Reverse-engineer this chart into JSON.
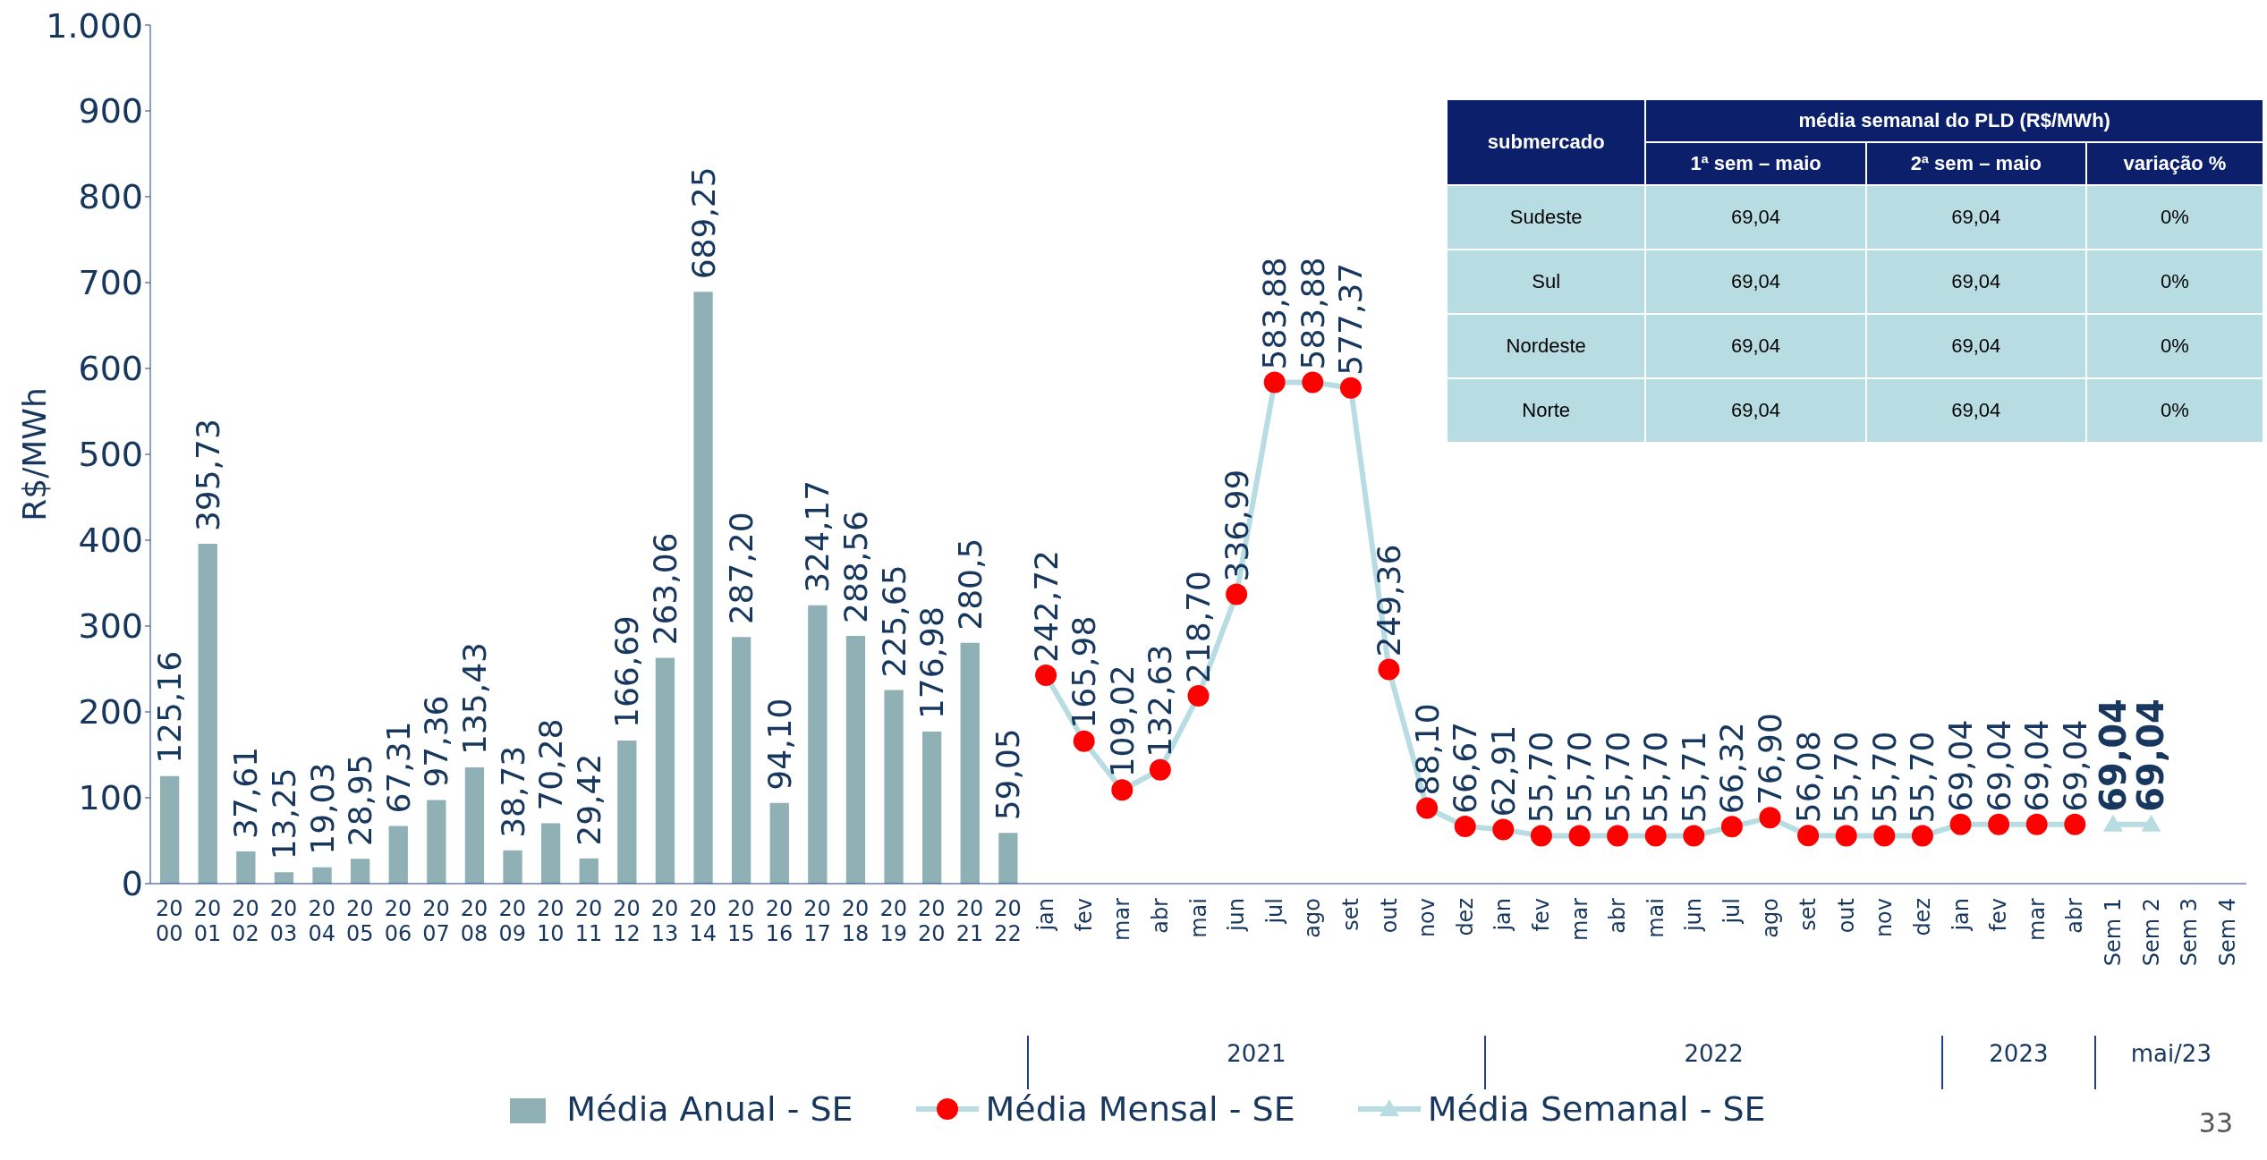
{
  "chart_data": [
    {
      "type": "bar",
      "ylabel": "R$/MWh",
      "categories": [
        "2000",
        "2001",
        "2002",
        "2003",
        "2004",
        "2005",
        "2006",
        "2007",
        "2008",
        "2009",
        "2010",
        "2011",
        "2012",
        "2013",
        "2014",
        "2015",
        "2016",
        "2017",
        "2018",
        "2019",
        "2020",
        "2021",
        "2022",
        "jan",
        "fev",
        "mar",
        "abr",
        "mai",
        "jun",
        "jul",
        "ago",
        "set",
        "out",
        "nov",
        "dez",
        "jan",
        "fev",
        "mar",
        "abr",
        "mai",
        "jun",
        "jul",
        "ago",
        "set",
        "out",
        "nov",
        "dez",
        "jan",
        "fev",
        "mar",
        "abr",
        "Sem 1",
        "Sem 2",
        "Sem 3",
        "Sem 4"
      ],
      "series": [
        {
          "name": "Média Anual - SE",
          "type": "bar",
          "color": "#8fb0b5",
          "values": [
            125.16,
            395.73,
            37.61,
            13.25,
            19.03,
            28.95,
            67.31,
            97.36,
            135.43,
            38.73,
            70.28,
            29.42,
            166.69,
            263.06,
            689.25,
            287.2,
            94.1,
            324.17,
            288.56,
            225.65,
            176.98,
            280.5,
            59.05,
            null,
            null,
            null,
            null,
            null,
            null,
            null,
            null,
            null,
            null,
            null,
            null,
            null,
            null,
            null,
            null,
            null,
            null,
            null,
            null,
            null,
            null,
            null,
            null,
            null,
            null,
            null,
            null,
            null,
            null,
            null,
            null
          ],
          "value_labels": [
            "125,16",
            "395,73",
            "37,61",
            "13,25",
            "19,03",
            "28,95",
            "67,31",
            "97,36",
            "135,43",
            "38,73",
            "70,28",
            "29,42",
            "166,69",
            "263,06",
            "689,25",
            "287,20",
            "94,10",
            "324,17",
            "288,56",
            "225,65",
            "176,98",
            "280,5",
            "59,05",
            null,
            null,
            null,
            null,
            null,
            null,
            null,
            null,
            null,
            null,
            null,
            null,
            null,
            null,
            null,
            null,
            null,
            null,
            null,
            null,
            null,
            null,
            null,
            null,
            null,
            null,
            null,
            null,
            null,
            null,
            null,
            null
          ]
        },
        {
          "name": "Média Mensal - SE",
          "type": "line",
          "color": "#b7dde3",
          "marker": "circle",
          "colors": [
            null,
            null,
            null,
            null,
            null,
            null,
            null,
            null,
            null,
            null,
            null,
            null,
            null,
            null,
            null,
            null,
            null,
            null,
            null,
            null,
            null,
            null,
            null,
            "#ff0000",
            "#ff0000",
            "#ff0000",
            "#ff0000",
            "#ff0000",
            "#ff0000",
            "#ff0000",
            "#ff0000",
            "#ff0000",
            "#ff0000",
            "#ff0000",
            "#ff0000",
            "#ff0000",
            "#ff0000",
            "#ff0000",
            "#ff0000",
            "#ff0000",
            "#ff0000",
            "#ff0000",
            "#ff0000",
            "#ff0000",
            "#ff0000",
            "#ff0000",
            "#ff0000",
            "#ff0000",
            "#ff0000",
            "#ff0000",
            "#ff0000",
            null,
            null,
            null,
            null
          ],
          "values": [
            null,
            null,
            null,
            null,
            null,
            null,
            null,
            null,
            null,
            null,
            null,
            null,
            null,
            null,
            null,
            null,
            null,
            null,
            null,
            null,
            null,
            null,
            null,
            242.72,
            165.98,
            109.02,
            132.63,
            218.7,
            336.99,
            583.88,
            583.88,
            577.37,
            249.36,
            88.1,
            66.67,
            62.91,
            55.7,
            55.7,
            55.7,
            55.7,
            55.71,
            66.32,
            76.9,
            56.08,
            55.7,
            55.7,
            55.7,
            69.04,
            69.04,
            69.04,
            69.04,
            null,
            null,
            null,
            null
          ],
          "value_labels": [
            null,
            null,
            null,
            null,
            null,
            null,
            null,
            null,
            null,
            null,
            null,
            null,
            null,
            null,
            null,
            null,
            null,
            null,
            null,
            null,
            null,
            null,
            null,
            "242,72",
            "165,98",
            "109,02",
            "132,63",
            "218,70",
            "336,99",
            "583,88",
            "583,88",
            "577,37",
            "249,36",
            "88,10",
            "66,67",
            "62,91",
            "55,70",
            "55,70",
            "55,70",
            "55,70",
            "55,71",
            "66,32",
            "76,90",
            "56,08",
            "55,70",
            "55,70",
            "55,70",
            "69,04",
            "69,04",
            "69,04",
            "69,04",
            null,
            null,
            null,
            null
          ]
        },
        {
          "name": "Média Semanal - SE",
          "type": "line",
          "color": "#b7dde3",
          "marker": "triangle",
          "values": [
            null,
            null,
            null,
            null,
            null,
            null,
            null,
            null,
            null,
            null,
            null,
            null,
            null,
            null,
            null,
            null,
            null,
            null,
            null,
            null,
            null,
            null,
            null,
            null,
            null,
            null,
            null,
            null,
            null,
            null,
            null,
            null,
            null,
            null,
            null,
            null,
            null,
            null,
            null,
            null,
            null,
            null,
            null,
            null,
            null,
            null,
            null,
            null,
            null,
            null,
            null,
            69.04,
            69.04,
            null,
            null
          ],
          "value_labels": [
            null,
            null,
            null,
            null,
            null,
            null,
            null,
            null,
            null,
            null,
            null,
            null,
            null,
            null,
            null,
            null,
            null,
            null,
            null,
            null,
            null,
            null,
            null,
            null,
            null,
            null,
            null,
            null,
            null,
            null,
            null,
            null,
            null,
            null,
            null,
            null,
            null,
            null,
            null,
            null,
            null,
            null,
            null,
            null,
            null,
            null,
            null,
            null,
            null,
            null,
            null,
            "69,04",
            "69,04",
            null,
            null
          ]
        }
      ],
      "ylim": [
        0,
        1000
      ],
      "yticks": [
        0,
        100,
        200,
        300,
        400,
        500,
        600,
        700,
        800,
        900,
        {
          "value": 1000,
          "label": "1.000"
        }
      ],
      "grid": false,
      "legend": "bottom",
      "annotations": [
        "2021",
        "2022",
        "2023",
        "mai/23",
        "33"
      ]
    },
    {
      "type": "other",
      "title": "média semanal do PLD (R$/MWh)",
      "ylabel": "submercado",
      "categories": [
        "1ª sem – maio",
        "2ª sem – maio",
        "variação %"
      ],
      "y_categories": [
        "Sudeste",
        "Sul",
        "Nordeste",
        "Norte"
      ],
      "cell_labels": [
        [
          "69,04",
          "69,04",
          "0%"
        ],
        [
          "69,04",
          "69,04",
          "0%"
        ],
        [
          "69,04",
          "69,04",
          "0%"
        ],
        [
          "69,04",
          "69,04",
          "0%"
        ]
      ]
    }
  ]
}
